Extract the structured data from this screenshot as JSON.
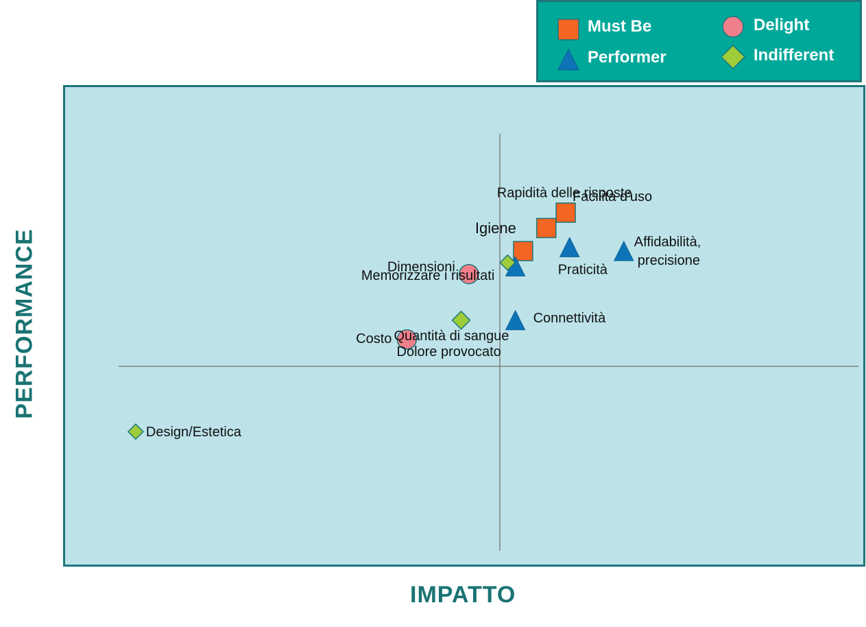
{
  "chart_data": {
    "type": "scatter",
    "xlabel": "IMPATTO",
    "ylabel": "PERFORMANCE",
    "xlim": [
      -10,
      10
    ],
    "ylim": [
      -10,
      10
    ],
    "grid": false,
    "legend_position": "top-right",
    "series": [
      {
        "name": "Must Be",
        "marker": "square",
        "color": "#f26522",
        "points": [
          {
            "x": 0.6,
            "y": 3.0,
            "label": "Igiene"
          },
          {
            "x": 1.2,
            "y": 3.6,
            "label": "Rapidità delle risposte"
          },
          {
            "x": 1.7,
            "y": 4.0,
            "label": "Facilità d'uso"
          }
        ]
      },
      {
        "name": "Delight",
        "marker": "circle",
        "color": "#f07f8b",
        "points": [
          {
            "x": -0.8,
            "y": 2.4,
            "label": "Dimensioni"
          },
          {
            "x": -2.4,
            "y": 0.7,
            "label": "Costo"
          }
        ]
      },
      {
        "name": "Performer",
        "marker": "triangle",
        "color": "#0e74b8",
        "points": [
          {
            "x": 0.4,
            "y": 2.6,
            "label": ""
          },
          {
            "x": 1.8,
            "y": 3.1,
            "label": "Praticità"
          },
          {
            "x": 0.4,
            "y": 1.2,
            "label": "Connettività"
          },
          {
            "x": 3.2,
            "y": 3.0,
            "label": "Affidabilità, precisione"
          }
        ]
      },
      {
        "name": "Indifferent",
        "marker": "diamond",
        "color": "#9fcd3a",
        "points": [
          {
            "x": 0.2,
            "y": 2.7,
            "label": "Memorizzare i risultati"
          },
          {
            "x": -1.0,
            "y": 1.2,
            "label": "Quantità di sangue"
          },
          {
            "x": -1.0,
            "y": 1.2,
            "label": "Dolore provocato"
          },
          {
            "x": -9.4,
            "y": -1.7,
            "label": "Design/Estetica"
          }
        ]
      }
    ]
  }
}
